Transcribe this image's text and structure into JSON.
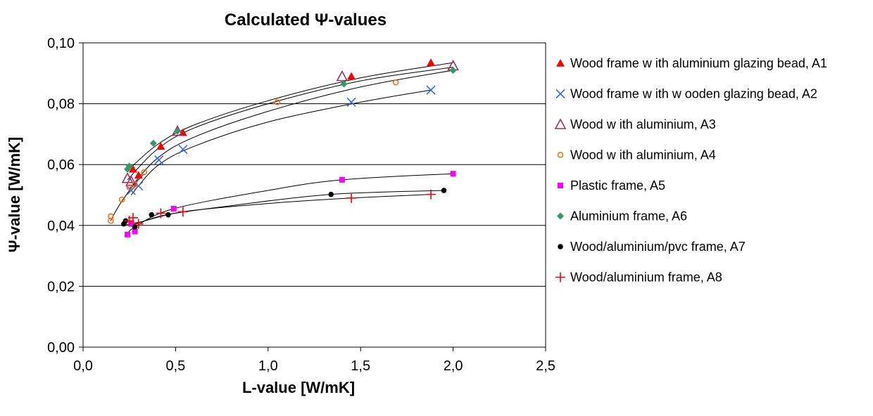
{
  "chart_data": {
    "type": "scatter",
    "title": "Calculated Ψ-values",
    "xlabel": "L-value [W/mK]",
    "ylabel": "Ψ-value [W/mK]",
    "xlim": [
      0,
      2.5
    ],
    "ylim": [
      0,
      0.1
    ],
    "x_ticks": [
      "0,0",
      "0,5",
      "1,0",
      "1,5",
      "2,0",
      "2,5"
    ],
    "y_ticks": [
      "0,00",
      "0,02",
      "0,04",
      "0,06",
      "0,08",
      "0,10"
    ],
    "grid": "horizontal",
    "legend_position": "right",
    "series": [
      {
        "name": "Wood frame w ith aluminium glazing bead, A1",
        "color": "#ff0000",
        "marker": "triangle",
        "points": [
          [
            0.27,
            0.0585
          ],
          [
            0.3,
            0.0565
          ],
          [
            0.42,
            0.066
          ],
          [
            0.54,
            0.0705
          ],
          [
            1.45,
            0.089
          ],
          [
            1.88,
            0.0935
          ]
        ]
      },
      {
        "name": "Wood frame w ith w ooden glazing bead, A2",
        "color": "#3366ff",
        "marker": "x",
        "points": [
          [
            0.26,
            0.0515
          ],
          [
            0.3,
            0.053
          ],
          [
            0.41,
            0.0615
          ],
          [
            0.54,
            0.065
          ],
          [
            1.45,
            0.0805
          ],
          [
            1.88,
            0.0845
          ]
        ]
      },
      {
        "name": "Wood w ith aluminium, A3",
        "color": "#993366",
        "marker": "open-triangle",
        "points": [
          [
            0.24,
            0.0555
          ],
          [
            0.26,
            0.0545
          ],
          [
            0.51,
            0.071
          ],
          [
            1.4,
            0.089
          ],
          [
            2.0,
            0.0925
          ]
        ]
      },
      {
        "name": "Wood w ith aluminium, A4",
        "color": "#ff6600",
        "marker": "open-circle",
        "points": [
          [
            0.15,
            0.0415
          ],
          [
            0.15,
            0.043
          ],
          [
            0.21,
            0.0485
          ],
          [
            0.25,
            0.0525
          ],
          [
            0.28,
            0.0535
          ],
          [
            0.33,
            0.0575
          ],
          [
            1.05,
            0.0805
          ],
          [
            1.69,
            0.087
          ]
        ]
      },
      {
        "name": "Plastic frame, A5",
        "color": "#ff00ff",
        "marker": "square",
        "points": [
          [
            0.24,
            0.037
          ],
          [
            0.28,
            0.038
          ],
          [
            0.26,
            0.0405
          ],
          [
            0.49,
            0.0455
          ],
          [
            1.4,
            0.055
          ],
          [
            2.0,
            0.057
          ]
        ]
      },
      {
        "name": "Aluminium frame, A6",
        "color": "#339966",
        "marker": "diamond",
        "points": [
          [
            0.24,
            0.0585
          ],
          [
            0.25,
            0.0595
          ],
          [
            0.38,
            0.067
          ],
          [
            0.51,
            0.071
          ],
          [
            1.41,
            0.0865
          ],
          [
            2.0,
            0.091
          ]
        ]
      },
      {
        "name": "Wood/aluminium/pvc frame, A7",
        "color": "#000000",
        "marker": "circle",
        "points": [
          [
            0.22,
            0.0405
          ],
          [
            0.23,
            0.0415
          ],
          [
            0.28,
            0.0395
          ],
          [
            0.37,
            0.0435
          ],
          [
            0.46,
            0.0435
          ],
          [
            1.34,
            0.0502
          ],
          [
            1.95,
            0.0515
          ]
        ]
      },
      {
        "name": "Wood/aluminium frame, A8",
        "color": "#ff0000",
        "marker": "plus",
        "points": [
          [
            0.25,
            0.0415
          ],
          [
            0.27,
            0.0425
          ],
          [
            0.3,
            0.0405
          ],
          [
            0.42,
            0.044
          ],
          [
            0.54,
            0.0445
          ],
          [
            1.45,
            0.049
          ],
          [
            1.88,
            0.0502
          ]
        ]
      }
    ],
    "trend_curves": [
      {
        "points": [
          [
            0.24,
            0.058
          ],
          [
            0.4,
            0.0665
          ],
          [
            0.6,
            0.073
          ],
          [
            1.0,
            0.081
          ],
          [
            1.5,
            0.0885
          ],
          [
            2.0,
            0.0935
          ]
        ]
      },
      {
        "points": [
          [
            0.24,
            0.055
          ],
          [
            0.4,
            0.065
          ],
          [
            0.6,
            0.072
          ],
          [
            1.0,
            0.08
          ],
          [
            1.5,
            0.0875
          ],
          [
            2.0,
            0.092
          ]
        ]
      },
      {
        "points": [
          [
            0.25,
            0.052
          ],
          [
            0.4,
            0.062
          ],
          [
            0.6,
            0.069
          ],
          [
            1.0,
            0.0775
          ],
          [
            1.5,
            0.0855
          ],
          [
            2.0,
            0.091
          ]
        ]
      },
      {
        "points": [
          [
            0.26,
            0.05
          ],
          [
            0.4,
            0.0595
          ],
          [
            0.6,
            0.066
          ],
          [
            1.0,
            0.074
          ],
          [
            1.5,
            0.0805
          ],
          [
            1.88,
            0.0845
          ]
        ]
      },
      {
        "points": [
          [
            0.15,
            0.0415
          ],
          [
            0.17,
            0.044
          ],
          [
            0.21,
            0.048
          ],
          [
            0.27,
            0.053
          ],
          [
            0.33,
            0.057
          ]
        ]
      },
      {
        "points": [
          [
            0.24,
            0.037
          ],
          [
            0.28,
            0.0395
          ],
          [
            0.49,
            0.0455
          ],
          [
            1.0,
            0.0515
          ],
          [
            1.4,
            0.055
          ],
          [
            2.0,
            0.057
          ]
        ]
      },
      {
        "points": [
          [
            0.22,
            0.0405
          ],
          [
            0.28,
            0.0405
          ],
          [
            0.45,
            0.0435
          ],
          [
            0.8,
            0.0465
          ],
          [
            1.34,
            0.0502
          ],
          [
            1.95,
            0.0515
          ]
        ]
      },
      {
        "points": [
          [
            0.25,
            0.0415
          ],
          [
            0.3,
            0.041
          ],
          [
            0.54,
            0.0445
          ],
          [
            1.0,
            0.0472
          ],
          [
            1.45,
            0.049
          ],
          [
            1.88,
            0.0502
          ]
        ]
      }
    ]
  }
}
